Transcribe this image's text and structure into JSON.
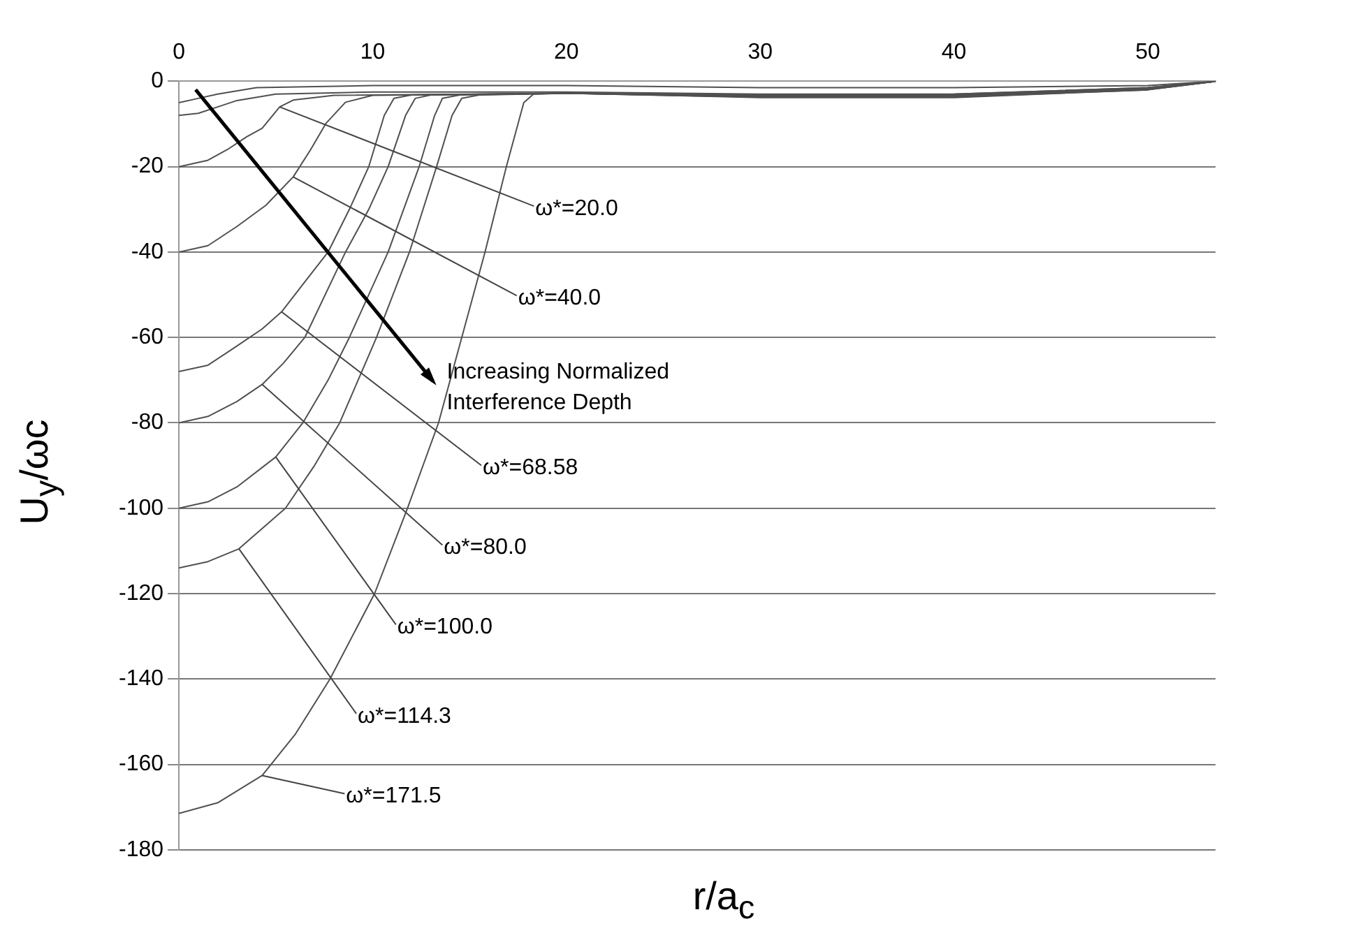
{
  "chart_data": {
    "type": "line",
    "xlabel": "r/a$_{c}$",
    "ylabel": "U$_{y}$/ωc",
    "xlim": [
      0,
      53.5
    ],
    "ylim": [
      -180,
      0
    ],
    "xticks": [
      0,
      10,
      20,
      30,
      40,
      50
    ],
    "yticks": [
      0,
      -20,
      -40,
      -60,
      -80,
      -100,
      -120,
      -140,
      -160,
      -180
    ],
    "grid": "y",
    "legend": false,
    "marker": "none",
    "line_style": "solid",
    "series": [
      {
        "color": "#505050",
        "x": [
          0,
          1,
          2,
          4,
          10,
          20,
          30,
          40,
          50,
          53.5
        ],
        "values": [
          -5,
          -4,
          -3,
          -1.5,
          -1,
          -1,
          -1.5,
          -1.5,
          -1,
          0
        ]
      },
      {
        "color": "#505050",
        "x": [
          0,
          1,
          2,
          3,
          5,
          10,
          20,
          30,
          40,
          50,
          53.5
        ],
        "values": [
          -8,
          -7.5,
          -6,
          -4.5,
          -3,
          -2.5,
          -2.5,
          -3,
          -3,
          -1.5,
          0
        ]
      },
      {
        "color": "#505050",
        "x": [
          0,
          1.5,
          2.5,
          3.5,
          4.3,
          5.2,
          5.9,
          8,
          20,
          30,
          40,
          50,
          53.5
        ],
        "values": [
          -20,
          -18.5,
          -16,
          -13,
          -11,
          -6,
          -4.4,
          -3.3,
          -2.8,
          -3.2,
          -3,
          -1.5,
          0
        ]
      },
      {
        "color": "#505050",
        "x": [
          0,
          1.5,
          3,
          4.5,
          5.9,
          6.8,
          7.6,
          8.6,
          10,
          20,
          30,
          40,
          50,
          53.5
        ],
        "values": [
          -40,
          -38.5,
          -34,
          -29,
          -22.4,
          -16,
          -9.8,
          -4.9,
          -3.3,
          -2.8,
          -3.3,
          -3.2,
          -1.6,
          0
        ]
      },
      {
        "color": "#505050",
        "x": [
          0,
          1.5,
          3,
          4.3,
          5.3,
          6.5,
          7.7,
          8.8,
          9.8,
          10.6,
          11.1,
          12,
          20,
          30,
          40,
          50,
          53.5
        ],
        "values": [
          -68,
          -66.5,
          -62,
          -58,
          -54,
          -47,
          -40,
          -30,
          -20,
          -8,
          -4,
          -3.2,
          -2.8,
          -3.4,
          -3.4,
          -1.7,
          0
        ]
      },
      {
        "color": "#505050",
        "x": [
          0,
          1.5,
          3,
          4.3,
          5.4,
          6.5,
          8.6,
          9.8,
          10.8,
          11.7,
          12.2,
          13,
          20,
          30,
          40,
          50,
          53.5
        ],
        "values": [
          -80,
          -78.5,
          -75,
          -71,
          -66,
          -60,
          -40,
          -30,
          -20,
          -8,
          -4,
          -3.2,
          -2.8,
          -3.5,
          -3.5,
          -1.8,
          0
        ]
      },
      {
        "color": "#505050",
        "x": [
          0,
          1.5,
          3,
          5,
          6.4,
          7.7,
          8.8,
          10.8,
          12.4,
          13.2,
          13.6,
          14.5,
          20,
          30,
          40,
          50,
          53.5
        ],
        "values": [
          -100,
          -98.5,
          -95,
          -88,
          -80,
          -70,
          -60,
          -40,
          -20,
          -8,
          -4,
          -3.2,
          -2.8,
          -3.6,
          -3.6,
          -1.9,
          0
        ]
      },
      {
        "color": "#505050",
        "x": [
          0,
          1.5,
          3.1,
          5.5,
          7,
          8.3,
          10.2,
          11.9,
          13.3,
          14.1,
          14.6,
          15.5,
          20,
          30,
          40,
          50,
          53.5
        ],
        "values": [
          -114,
          -112.5,
          -109.5,
          -100,
          -90,
          -80,
          -60,
          -40,
          -20,
          -8,
          -4,
          -3.2,
          -2.8,
          -3.7,
          -3.7,
          -2,
          0
        ]
      },
      {
        "color": "#505050",
        "x": [
          0,
          2,
          4.3,
          6,
          7.8,
          10.1,
          11.8,
          13.4,
          14.6,
          15.8,
          16.9,
          17.8,
          18.3,
          20,
          30,
          40,
          50,
          53.5
        ],
        "values": [
          -171.5,
          -169,
          -162.6,
          -153,
          -140,
          -120,
          -100,
          -80,
          -60,
          -40,
          -20,
          -5,
          -3,
          -2.8,
          -3.8,
          -3.8,
          -2,
          0
        ]
      }
    ],
    "annotations": [
      {
        "text": "ω*=20.0",
        "x": 5.2,
        "y": -6
      },
      {
        "text": "ω*=40.0",
        "x": 5.9,
        "y": -22.4
      },
      {
        "text": "ω*=68.58",
        "x": 5.3,
        "y": -54
      },
      {
        "text": "ω*=80.0",
        "x": 4.3,
        "y": -71
      },
      {
        "text": "ω*=100.0",
        "x": 5,
        "y": -88
      },
      {
        "text": "ω*=114.3",
        "x": 3.1,
        "y": -109.5
      },
      {
        "text": "ω*=171.5",
        "x": 4.3,
        "y": -162.6
      },
      "Increasing Normalized Interference Depth"
    ]
  }
}
